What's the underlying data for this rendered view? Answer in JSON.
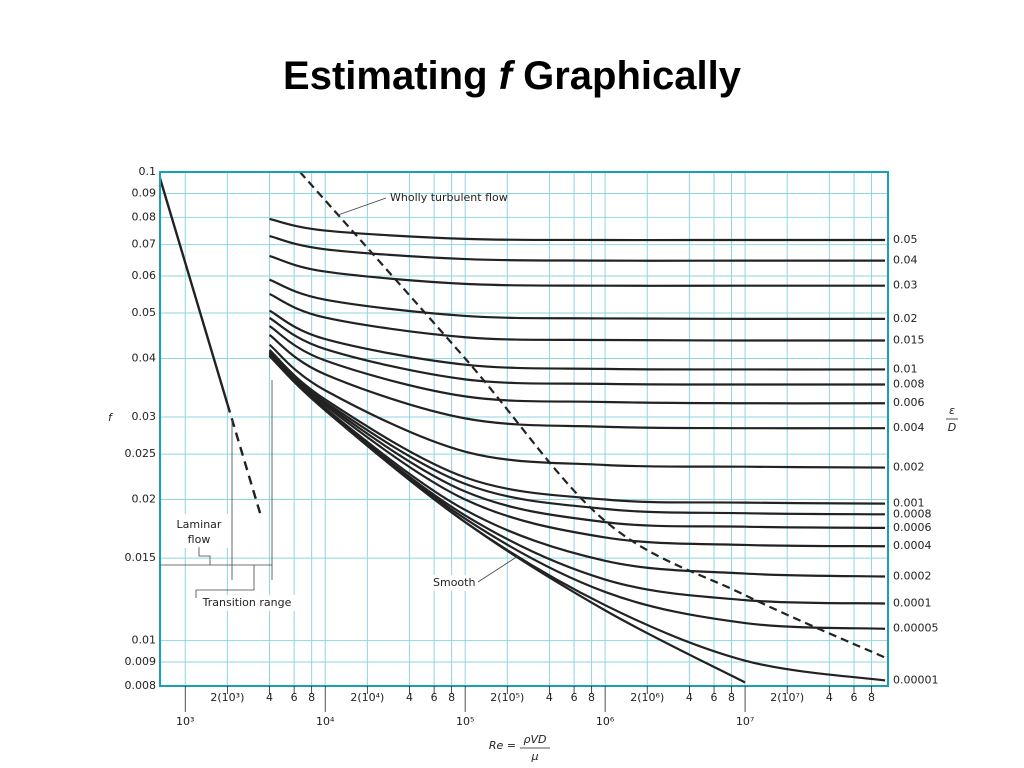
{
  "chart_data": {
    "type": "line",
    "title": [
      "Estimating ",
      "f",
      " Graphically"
    ],
    "ylabel": "f",
    "xlabel": {
      "prefix": "Re =",
      "numerator": "ρVD",
      "denominator": "μ"
    },
    "roughness_label": {
      "numerator": "ε",
      "denominator": "D"
    },
    "xscale": "log",
    "yscale": "log",
    "grid": true,
    "xlim": [
      660,
      105000000
    ],
    "ylim": [
      0.008,
      0.1
    ],
    "yticks": [
      0.1,
      0.09,
      0.08,
      0.07,
      0.06,
      0.05,
      0.04,
      0.03,
      0.025,
      0.02,
      0.015,
      0.01,
      0.009,
      0.008
    ],
    "xticks": [
      {
        "value": 1000,
        "label": "10³"
      },
      {
        "value": 2000,
        "label": "2(10³)"
      },
      {
        "value": 4000,
        "label": "4"
      },
      {
        "value": 6000,
        "label": "6"
      },
      {
        "value": 8000,
        "label": "8"
      },
      {
        "value": 10000,
        "label": "10⁴"
      },
      {
        "value": 20000,
        "label": "2(10⁴)"
      },
      {
        "value": 40000,
        "label": "4"
      },
      {
        "value": 60000,
        "label": "6"
      },
      {
        "value": 80000,
        "label": "8"
      },
      {
        "value": 100000,
        "label": "10⁵"
      },
      {
        "value": 200000,
        "label": "2(10⁵)"
      },
      {
        "value": 400000,
        "label": "4"
      },
      {
        "value": 600000,
        "label": "6"
      },
      {
        "value": 800000,
        "label": "8"
      },
      {
        "value": 1000000,
        "label": "10⁶"
      },
      {
        "value": 2000000,
        "label": "2(10⁶)"
      },
      {
        "value": 4000000,
        "label": "4"
      },
      {
        "value": 6000000,
        "label": "6"
      },
      {
        "value": 8000000,
        "label": "8"
      },
      {
        "value": 10000000,
        "label": "10⁷"
      },
      {
        "value": 20000000,
        "label": "2(10⁷)"
      },
      {
        "value": 40000000,
        "label": "4"
      },
      {
        "value": 60000000,
        "label": "6"
      },
      {
        "value": 80000000,
        "label": "8"
      }
    ],
    "x": [
      4000,
      10000,
      100000,
      1000000,
      10000000,
      100000000
    ],
    "series": [
      {
        "name": "0.05",
        "color": "#222222",
        "values": [
          0.0794,
          0.075,
          0.072,
          0.0716,
          0.0716,
          0.0716
        ]
      },
      {
        "name": "0.04",
        "color": "#222222",
        "values": [
          0.073,
          0.0684,
          0.0652,
          0.0647,
          0.0647,
          0.0647
        ]
      },
      {
        "name": "0.03",
        "color": "#222222",
        "values": [
          0.0662,
          0.0613,
          0.0577,
          0.0572,
          0.0572,
          0.0572
        ]
      },
      {
        "name": "0.02",
        "color": "#222222",
        "values": [
          0.0589,
          0.0534,
          0.0493,
          0.0487,
          0.0486,
          0.0486
        ]
      },
      {
        "name": "0.015",
        "color": "#222222",
        "values": [
          0.0549,
          0.0489,
          0.0444,
          0.0438,
          0.0437,
          0.0437
        ]
      },
      {
        "name": "0.01",
        "color": "#222222",
        "values": [
          0.0506,
          0.044,
          0.0388,
          0.038,
          0.0379,
          0.0379
        ]
      },
      {
        "name": "0.008",
        "color": "#222222",
        "values": [
          0.0488,
          0.0419,
          0.0361,
          0.0353,
          0.0352,
          0.0352
        ]
      },
      {
        "name": "0.006",
        "color": "#222222",
        "values": [
          0.0469,
          0.0396,
          0.0332,
          0.0323,
          0.0321,
          0.0321
        ]
      },
      {
        "name": "0.004",
        "color": "#222222",
        "values": [
          0.0449,
          0.037,
          0.0298,
          0.0286,
          0.0284,
          0.0284
        ]
      },
      {
        "name": "0.002",
        "color": "#222222",
        "values": [
          0.0428,
          0.0342,
          0.0253,
          0.0237,
          0.0235,
          0.0234
        ]
      },
      {
        "name": "0.001",
        "color": "#222222",
        "values": [
          0.0417,
          0.0327,
          0.0223,
          0.02,
          0.0197,
          0.0196
        ]
      },
      {
        "name": "0.0008",
        "color": "#222222",
        "values": [
          0.0414,
          0.0323,
          0.0216,
          0.0191,
          0.0187,
          0.0186
        ]
      },
      {
        "name": "0.0006",
        "color": "#222222",
        "values": [
          0.0412,
          0.032,
          0.0208,
          0.0179,
          0.0175,
          0.0174
        ]
      },
      {
        "name": "0.0004",
        "color": "#222222",
        "values": [
          0.041,
          0.0317,
          0.02,
          0.0166,
          0.016,
          0.0159
        ]
      },
      {
        "name": "0.0002",
        "color": "#222222",
        "values": [
          0.0408,
          0.0313,
          0.019,
          0.0148,
          0.0139,
          0.0137
        ]
      },
      {
        "name": "0.0001",
        "color": "#222222",
        "values": [
          0.0406,
          0.0311,
          0.0185,
          0.0135,
          0.0122,
          0.012
        ]
      },
      {
        "name": "0.00005",
        "color": "#222222",
        "values": [
          0.0405,
          0.0311,
          0.0182,
          0.0127,
          0.0109,
          0.0106
        ]
      },
      {
        "name": "0.00001",
        "color": "#222222",
        "values": [
          0.0405,
          0.031,
          0.0179,
          0.0119,
          0.00906,
          0.00822
        ]
      }
    ],
    "smooth": {
      "x": [
        4000,
        10000,
        100000,
        1000000,
        10000000
      ],
      "values": [
        0.0405,
        0.031,
        0.0179,
        0.0116,
        0.00814
      ]
    },
    "laminar": {
      "x": [
        660,
        2000
      ],
      "values": [
        0.097,
        0.032
      ]
    },
    "laminar_dashed": {
      "x": [
        2000,
        3500
      ],
      "values": [
        0.032,
        0.0183
      ]
    },
    "wholly_turbulent": {
      "x": [
        6600,
        100000,
        1000000,
        10000000,
        100000000
      ],
      "values": [
        0.1,
        0.04,
        0.018,
        0.0125,
        0.0092
      ]
    },
    "annotations": {
      "wholly_turbulent": "Wholly turbulent flow",
      "laminar": [
        "Laminar",
        "flow"
      ],
      "transition": "Transition range",
      "smooth": "Smooth"
    }
  }
}
